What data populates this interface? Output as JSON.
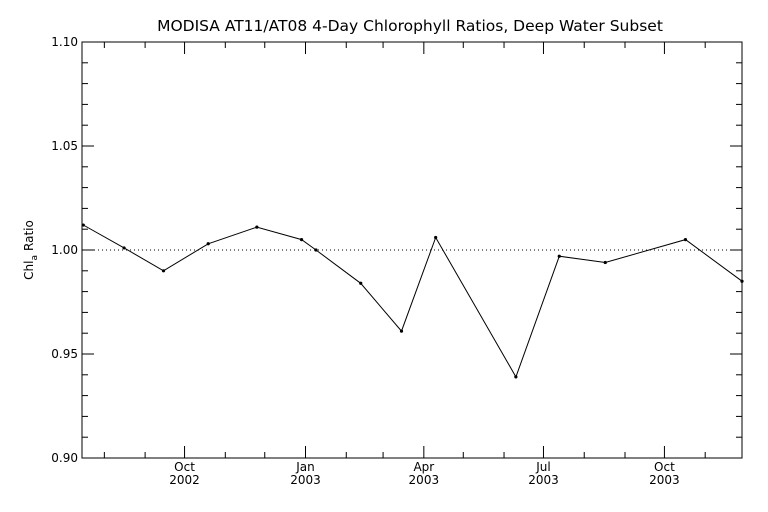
{
  "chart_data": {
    "type": "line",
    "title": "MODISA AT11/AT08 4-Day Chlorophyll Ratios, Deep Water Subset",
    "ylabel_main": "Chl",
    "ylabel_sub": "a",
    "ylabel_tail": "Ratio",
    "xlabel": "",
    "ylim": [
      0.9,
      1.1
    ],
    "y_ticks": [
      "0.90",
      "0.95",
      "1.00",
      "1.05",
      "1.10"
    ],
    "y_tick_values": [
      0.9,
      0.95,
      1.0,
      1.05,
      1.1
    ],
    "xlim": [
      "2002-07-15",
      "2003-11-29"
    ],
    "x_ticks": [
      {
        "date": "2002-10-01",
        "month": "Oct",
        "year": "2002"
      },
      {
        "date": "2003-01-01",
        "month": "Jan",
        "year": "2003"
      },
      {
        "date": "2003-04-01",
        "month": "Apr",
        "year": "2003"
      },
      {
        "date": "2003-07-01",
        "month": "Jul",
        "year": "2003"
      },
      {
        "date": "2003-10-01",
        "month": "Oct",
        "year": "2003"
      }
    ],
    "reference_line": 1.0,
    "grid": false,
    "series": [
      {
        "x": [
          "2002-07-16",
          "2002-08-16",
          "2002-09-15",
          "2002-10-19",
          "2002-11-25",
          "2002-12-29",
          "2003-01-09",
          "2003-02-12",
          "2003-03-15",
          "2003-04-10",
          "2003-06-10",
          "2003-07-13",
          "2003-08-17",
          "2003-10-17",
          "2003-11-29"
        ],
        "values": [
          1.012,
          1.001,
          0.99,
          1.003,
          1.011,
          1.005,
          1.0,
          0.984,
          0.961,
          1.006,
          0.939,
          0.997,
          0.994,
          1.005,
          0.985
        ]
      }
    ],
    "colors": {
      "line": "#000000",
      "axis": "#000000",
      "background": "#ffffff"
    }
  }
}
